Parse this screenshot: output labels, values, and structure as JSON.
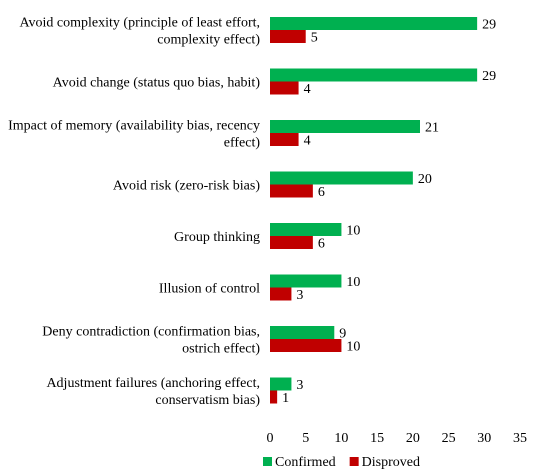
{
  "chart_data": {
    "type": "bar",
    "orientation": "horizontal",
    "categories": [
      [
        "Avoid complexity (principle of least effort,",
        "complexity effect)"
      ],
      [
        "Avoid change (status quo bias, habit)"
      ],
      [
        "Impact of memory (availability bias, recency",
        "effect)"
      ],
      [
        "Avoid risk (zero-risk bias)"
      ],
      [
        "Group thinking"
      ],
      [
        "Illusion of control"
      ],
      [
        "Deny contradiction (confirmation bias,",
        "ostrich effect)"
      ],
      [
        "Adjustment failures (anchoring effect,",
        "conservatism bias)"
      ]
    ],
    "series": [
      {
        "name": "Confirmed",
        "color": "#00b050",
        "values": [
          29,
          29,
          21,
          20,
          10,
          10,
          9,
          3
        ]
      },
      {
        "name": "Disproved",
        "color": "#c00000",
        "values": [
          5,
          4,
          4,
          6,
          6,
          3,
          10,
          1
        ]
      }
    ],
    "xlim": [
      0,
      35
    ],
    "xticks": [
      0,
      5,
      10,
      15,
      20,
      25,
      30,
      35
    ],
    "grid": false,
    "legend_position": "bottom",
    "title": "",
    "xlabel": "",
    "ylabel": ""
  }
}
